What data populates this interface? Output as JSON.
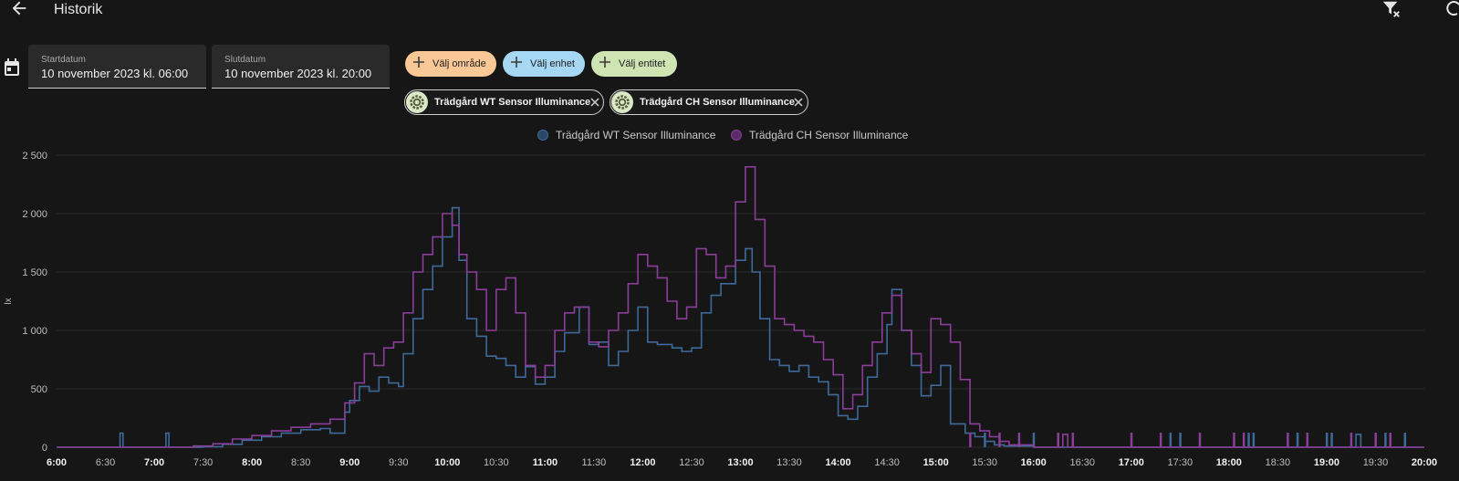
{
  "page": {
    "title": "Historik"
  },
  "icons": {
    "back": "arrow-left-icon",
    "clear_filter": "filter-remove-icon",
    "edge": "partial-icon",
    "calendar": "calendar-icon",
    "plus": "plus-icon",
    "entity": "gear-icon",
    "remove": "close-icon"
  },
  "dates": {
    "start": {
      "label": "Startdatum",
      "value": "10 november 2023 kl. 06:00"
    },
    "end": {
      "label": "Slutdatum",
      "value": "10 november 2023 kl. 20:00"
    }
  },
  "pickers": [
    {
      "label": "Välj område",
      "color": "#f9c896"
    },
    {
      "label": "Välj enhet",
      "color": "#a6d7f3"
    },
    {
      "label": "Välj entitet",
      "color": "#cfe4b3"
    }
  ],
  "chips": [
    {
      "label": "Trädgård WT Sensor Illuminance"
    },
    {
      "label": "Trädgård CH Sensor Illuminance"
    }
  ],
  "legend": [
    {
      "label": "Trädgård WT Sensor Illuminance",
      "color": "#3d6a9a"
    },
    {
      "label": "Trädgård CH Sensor Illuminance",
      "color": "#8b3d9a"
    }
  ],
  "chart_data": {
    "type": "line",
    "step": true,
    "ylabel": "lx",
    "ylim": [
      0,
      2500
    ],
    "xlim": [
      6,
      20
    ],
    "yticks": [
      "0",
      "500",
      "1 000",
      "1 500",
      "2 000",
      "2 500"
    ],
    "ytick_values": [
      0,
      500,
      1000,
      1500,
      2000,
      2500
    ],
    "xticks": [
      {
        "label": "6:00",
        "h": 6,
        "bold": true
      },
      {
        "label": "6:30",
        "h": 6.5,
        "bold": false
      },
      {
        "label": "7:00",
        "h": 7,
        "bold": true
      },
      {
        "label": "7:30",
        "h": 7.5,
        "bold": false
      },
      {
        "label": "8:00",
        "h": 8,
        "bold": true
      },
      {
        "label": "8:30",
        "h": 8.5,
        "bold": false
      },
      {
        "label": "9:00",
        "h": 9,
        "bold": true
      },
      {
        "label": "9:30",
        "h": 9.5,
        "bold": false
      },
      {
        "label": "10:00",
        "h": 10,
        "bold": true
      },
      {
        "label": "10:30",
        "h": 10.5,
        "bold": false
      },
      {
        "label": "11:00",
        "h": 11,
        "bold": true
      },
      {
        "label": "11:30",
        "h": 11.5,
        "bold": false
      },
      {
        "label": "12:00",
        "h": 12,
        "bold": true
      },
      {
        "label": "12:30",
        "h": 12.5,
        "bold": false
      },
      {
        "label": "13:00",
        "h": 13,
        "bold": true
      },
      {
        "label": "13:30",
        "h": 13.5,
        "bold": false
      },
      {
        "label": "14:00",
        "h": 14,
        "bold": true
      },
      {
        "label": "14:30",
        "h": 14.5,
        "bold": false
      },
      {
        "label": "15:00",
        "h": 15,
        "bold": true
      },
      {
        "label": "15:30",
        "h": 15.5,
        "bold": false
      },
      {
        "label": "16:00",
        "h": 16,
        "bold": true
      },
      {
        "label": "16:30",
        "h": 16.5,
        "bold": false
      },
      {
        "label": "17:00",
        "h": 17,
        "bold": true
      },
      {
        "label": "17:30",
        "h": 17.5,
        "bold": false
      },
      {
        "label": "18:00",
        "h": 18,
        "bold": true
      },
      {
        "label": "18:30",
        "h": 18.5,
        "bold": false
      },
      {
        "label": "19:00",
        "h": 19,
        "bold": true
      },
      {
        "label": "19:30",
        "h": 19.5,
        "bold": false
      },
      {
        "label": "20:00",
        "h": 20,
        "bold": true
      }
    ],
    "series": [
      {
        "name": "Trädgård WT Sensor Illuminance",
        "color": "#3d6a9a",
        "points": [
          [
            6.0,
            0
          ],
          [
            6.65,
            0
          ],
          [
            6.65,
            120
          ],
          [
            6.68,
            0
          ],
          [
            7.12,
            0
          ],
          [
            7.12,
            120
          ],
          [
            7.15,
            0
          ],
          [
            7.5,
            5
          ],
          [
            7.7,
            25
          ],
          [
            7.9,
            60
          ],
          [
            8.1,
            90
          ],
          [
            8.3,
            120
          ],
          [
            8.5,
            150
          ],
          [
            8.7,
            160
          ],
          [
            8.8,
            120
          ],
          [
            8.95,
            300
          ],
          [
            9.0,
            400
          ],
          [
            9.1,
            520
          ],
          [
            9.2,
            480
          ],
          [
            9.3,
            600
          ],
          [
            9.4,
            550
          ],
          [
            9.5,
            520
          ],
          [
            9.55,
            800
          ],
          [
            9.65,
            1100
          ],
          [
            9.75,
            1350
          ],
          [
            9.85,
            1550
          ],
          [
            9.95,
            1800
          ],
          [
            10.05,
            2050
          ],
          [
            10.12,
            1600
          ],
          [
            10.2,
            1100
          ],
          [
            10.3,
            950
          ],
          [
            10.4,
            780
          ],
          [
            10.5,
            760
          ],
          [
            10.6,
            700
          ],
          [
            10.7,
            600
          ],
          [
            10.8,
            690
          ],
          [
            10.9,
            540
          ],
          [
            11.0,
            600
          ],
          [
            11.1,
            820
          ],
          [
            11.2,
            980
          ],
          [
            11.35,
            1200
          ],
          [
            11.45,
            880
          ],
          [
            11.55,
            900
          ],
          [
            11.65,
            700
          ],
          [
            11.75,
            820
          ],
          [
            11.85,
            1000
          ],
          [
            11.95,
            1200
          ],
          [
            12.05,
            900
          ],
          [
            12.15,
            880
          ],
          [
            12.3,
            850
          ],
          [
            12.4,
            820
          ],
          [
            12.5,
            850
          ],
          [
            12.6,
            1150
          ],
          [
            12.7,
            1300
          ],
          [
            12.8,
            1400
          ],
          [
            12.95,
            1600
          ],
          [
            13.05,
            1700
          ],
          [
            13.12,
            1500
          ],
          [
            13.2,
            1100
          ],
          [
            13.3,
            750
          ],
          [
            13.4,
            700
          ],
          [
            13.5,
            650
          ],
          [
            13.6,
            700
          ],
          [
            13.7,
            600
          ],
          [
            13.8,
            560
          ],
          [
            13.9,
            450
          ],
          [
            14.0,
            270
          ],
          [
            14.1,
            240
          ],
          [
            14.2,
            350
          ],
          [
            14.3,
            600
          ],
          [
            14.4,
            800
          ],
          [
            14.5,
            1050
          ],
          [
            14.55,
            1350
          ],
          [
            14.65,
            1000
          ],
          [
            14.75,
            700
          ],
          [
            14.85,
            440
          ],
          [
            14.95,
            530
          ],
          [
            15.05,
            700
          ],
          [
            15.15,
            200
          ],
          [
            15.3,
            120
          ],
          [
            15.4,
            90
          ],
          [
            15.5,
            50
          ],
          [
            15.6,
            20
          ],
          [
            15.7,
            10
          ],
          [
            16.0,
            0
          ],
          [
            19.3,
            0
          ],
          [
            19.3,
            110
          ],
          [
            19.35,
            0
          ],
          [
            20.0,
            0
          ]
        ]
      },
      {
        "name": "Trädgård CH Sensor Illuminance",
        "color": "#8b3d9a",
        "points": [
          [
            6.0,
            0
          ],
          [
            7.3,
            0
          ],
          [
            7.4,
            10
          ],
          [
            7.6,
            30
          ],
          [
            7.8,
            70
          ],
          [
            8.0,
            100
          ],
          [
            8.2,
            140
          ],
          [
            8.4,
            170
          ],
          [
            8.6,
            200
          ],
          [
            8.8,
            240
          ],
          [
            8.95,
            380
          ],
          [
            9.05,
            550
          ],
          [
            9.15,
            800
          ],
          [
            9.25,
            700
          ],
          [
            9.35,
            850
          ],
          [
            9.45,
            900
          ],
          [
            9.55,
            1150
          ],
          [
            9.65,
            1500
          ],
          [
            9.75,
            1650
          ],
          [
            9.85,
            1800
          ],
          [
            9.95,
            2000
          ],
          [
            10.05,
            1900
          ],
          [
            10.12,
            1650
          ],
          [
            10.2,
            1500
          ],
          [
            10.3,
            1350
          ],
          [
            10.4,
            1000
          ],
          [
            10.5,
            1350
          ],
          [
            10.6,
            1450
          ],
          [
            10.7,
            1150
          ],
          [
            10.8,
            700
          ],
          [
            10.9,
            600
          ],
          [
            11.0,
            700
          ],
          [
            11.1,
            1000
          ],
          [
            11.2,
            1150
          ],
          [
            11.3,
            1200
          ],
          [
            11.45,
            900
          ],
          [
            11.55,
            860
          ],
          [
            11.65,
            1000
          ],
          [
            11.75,
            1150
          ],
          [
            11.85,
            1400
          ],
          [
            11.95,
            1650
          ],
          [
            12.05,
            1550
          ],
          [
            12.15,
            1450
          ],
          [
            12.25,
            1250
          ],
          [
            12.35,
            1100
          ],
          [
            12.45,
            1200
          ],
          [
            12.55,
            1700
          ],
          [
            12.65,
            1650
          ],
          [
            12.75,
            1450
          ],
          [
            12.85,
            1550
          ],
          [
            12.95,
            2100
          ],
          [
            13.05,
            2400
          ],
          [
            13.15,
            1950
          ],
          [
            13.25,
            1550
          ],
          [
            13.35,
            1100
          ],
          [
            13.45,
            1050
          ],
          [
            13.55,
            1000
          ],
          [
            13.65,
            950
          ],
          [
            13.75,
            900
          ],
          [
            13.85,
            750
          ],
          [
            13.95,
            620
          ],
          [
            14.05,
            330
          ],
          [
            14.15,
            450
          ],
          [
            14.25,
            700
          ],
          [
            14.35,
            900
          ],
          [
            14.45,
            1150
          ],
          [
            14.55,
            1300
          ],
          [
            14.65,
            1000
          ],
          [
            14.75,
            800
          ],
          [
            14.85,
            640
          ],
          [
            14.95,
            1100
          ],
          [
            15.05,
            1050
          ],
          [
            15.15,
            900
          ],
          [
            15.25,
            580
          ],
          [
            15.35,
            200
          ],
          [
            15.45,
            140
          ],
          [
            15.55,
            90
          ],
          [
            15.65,
            50
          ],
          [
            15.75,
            20
          ],
          [
            16.0,
            0
          ],
          [
            16.3,
            0
          ],
          [
            16.3,
            110
          ],
          [
            16.35,
            0
          ],
          [
            19.0,
            0
          ],
          [
            20.0,
            0
          ]
        ]
      }
    ],
    "spikes": {
      "Trädgård WT Sensor Illuminance": [
        15.5,
        16.0,
        17.4,
        17.5,
        18.2,
        18.25,
        18.7,
        19.0,
        19.05,
        19.6,
        19.8
      ],
      "Trädgård CH Sensor Illuminance": [
        15.35,
        15.65,
        15.85,
        16.25,
        16.4,
        17.0,
        17.3,
        17.7,
        18.05,
        18.15,
        18.6,
        18.8,
        19.25,
        19.5,
        19.65
      ]
    }
  }
}
